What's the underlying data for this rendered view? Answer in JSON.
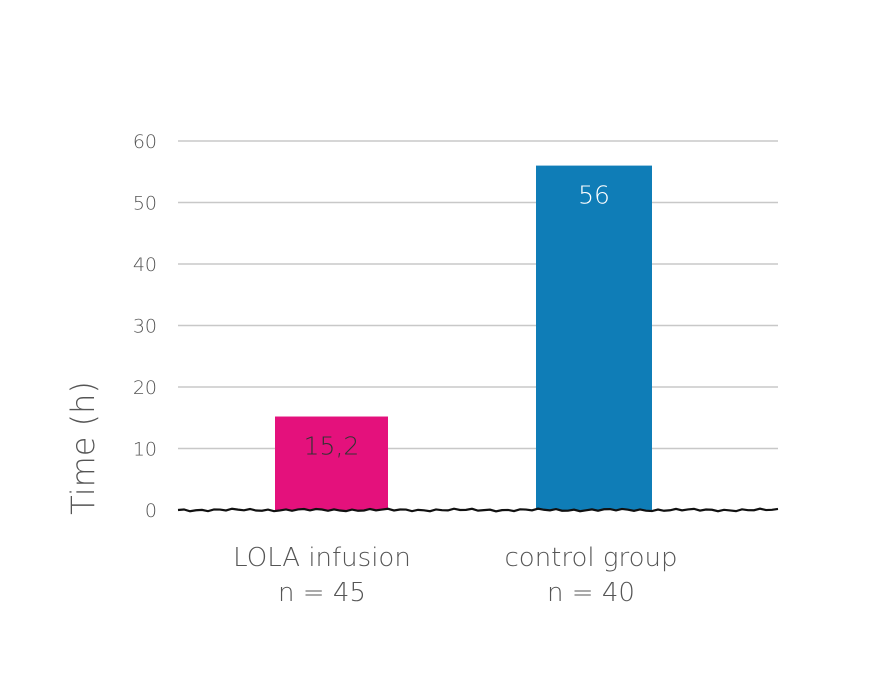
{
  "chart_data": {
    "type": "bar",
    "title": "",
    "xlabel": "",
    "ylabel": "Time (h)",
    "ylim": [
      0,
      60
    ],
    "yticks": [
      0,
      10,
      20,
      30,
      40,
      50,
      60
    ],
    "grid": true,
    "categories": [
      {
        "label": "LOLA infusion",
        "sublabel": "n = 45"
      },
      {
        "label": "control group",
        "sublabel": "n = 40"
      }
    ],
    "values": [
      15.2,
      56
    ],
    "value_labels": [
      "15,2",
      "56"
    ],
    "colors": [
      "#e4117c",
      "#0f7db7"
    ],
    "value_label_colors": [
      "#333333",
      "#ffffff"
    ]
  }
}
